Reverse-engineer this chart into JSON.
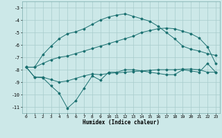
{
  "background_color": "#cce8e8",
  "grid_color": "#a8cccc",
  "line_color": "#1a7070",
  "xlabel": "Humidex (Indice chaleur)",
  "xlim": [
    -0.5,
    23.5
  ],
  "ylim": [
    -11.5,
    -2.5
  ],
  "yticks": [
    -11,
    -10,
    -9,
    -8,
    -7,
    -6,
    -5,
    -4,
    -3
  ],
  "xtick_labels": [
    "0",
    "1",
    "2",
    "3",
    "4",
    "5",
    "6",
    "7",
    "8",
    "9",
    "10",
    "11",
    "12",
    "13",
    "14",
    "15",
    "16",
    "17",
    "18",
    "19",
    "20",
    "21",
    "22",
    "23"
  ],
  "series": [
    {
      "x": [
        0,
        1,
        2,
        3,
        4,
        5,
        6,
        7,
        8,
        9,
        10,
        11,
        12,
        13,
        14,
        15,
        16,
        17,
        18,
        19,
        20,
        21,
        22,
        23
      ],
      "y": [
        -7.8,
        -7.8,
        -6.8,
        -6.1,
        -5.5,
        -5.1,
        -4.95,
        -4.7,
        -4.35,
        -4.0,
        -3.75,
        -3.6,
        -3.5,
        -3.7,
        -3.9,
        -4.1,
        -4.5,
        -5.0,
        -5.5,
        -6.1,
        -6.35,
        -6.5,
        -6.7,
        -6.85
      ]
    },
    {
      "x": [
        0,
        1,
        2,
        3,
        4,
        5,
        6,
        7,
        8,
        9,
        10,
        11,
        12,
        13,
        14,
        15,
        16,
        17,
        18,
        19,
        20,
        21,
        22,
        23
      ],
      "y": [
        -7.8,
        -7.8,
        -7.5,
        -7.2,
        -7.0,
        -6.9,
        -6.7,
        -6.5,
        -6.3,
        -6.1,
        -5.9,
        -5.7,
        -5.5,
        -5.3,
        -5.0,
        -4.85,
        -4.7,
        -4.65,
        -4.7,
        -4.9,
        -5.1,
        -5.45,
        -6.15,
        -7.5
      ]
    },
    {
      "x": [
        0,
        1,
        2,
        3,
        4,
        5,
        6,
        7,
        8,
        9,
        10,
        11,
        12,
        13,
        14,
        15,
        16,
        17,
        18,
        19,
        20,
        21,
        22,
        23
      ],
      "y": [
        -7.8,
        -8.6,
        -8.6,
        -8.8,
        -9.0,
        -8.9,
        -8.7,
        -8.5,
        -8.35,
        -8.4,
        -8.3,
        -8.25,
        -8.2,
        -8.15,
        -8.1,
        -8.05,
        -8.0,
        -8.0,
        -8.0,
        -7.95,
        -7.95,
        -8.0,
        -8.2,
        -8.2
      ]
    },
    {
      "x": [
        0,
        1,
        2,
        3,
        4,
        5,
        6,
        7,
        8,
        9,
        10,
        11,
        12,
        13,
        14,
        15,
        16,
        17,
        18,
        19,
        20,
        21,
        22,
        23
      ],
      "y": [
        -7.8,
        -8.6,
        -8.65,
        -9.3,
        -9.9,
        -11.1,
        -10.5,
        -9.5,
        -8.5,
        -8.85,
        -8.2,
        -8.2,
        -8.0,
        -8.0,
        -8.1,
        -8.2,
        -8.3,
        -8.4,
        -8.4,
        -8.0,
        -8.1,
        -8.2,
        -7.5,
        -8.2
      ]
    }
  ]
}
